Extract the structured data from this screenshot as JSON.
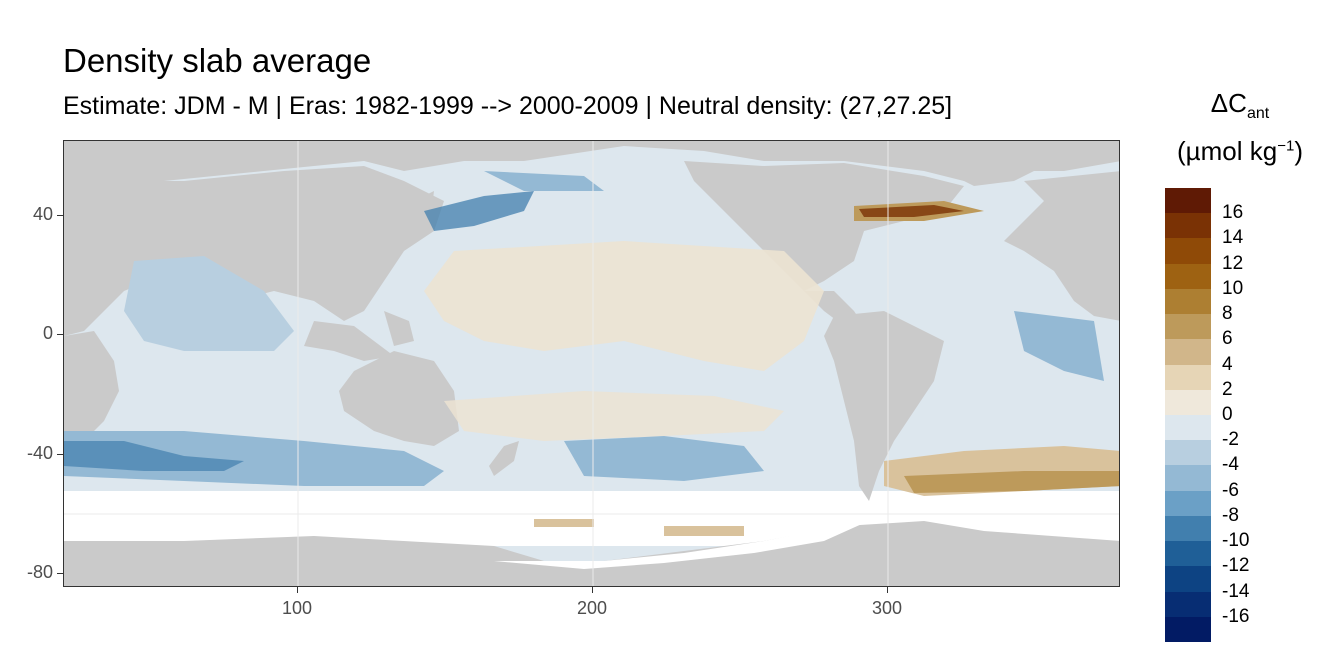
{
  "title": "Density slab average",
  "subtitle": "Estimate: JDM - M | Eras: 1982-1999 --> 2000-2009 | Neutral density: (27,27.25]",
  "legend": {
    "title_line1": "ΔC",
    "title_sub": "ant",
    "title_line2_pre": "(µmol kg",
    "title_sup": "−1",
    "title_line2_post": ")",
    "labels": [
      "16",
      "14",
      "12",
      "10",
      "8",
      "6",
      "4",
      "2",
      "0",
      "-2",
      "-4",
      "-6",
      "-8",
      "-10",
      "-12",
      "-14",
      "-16"
    ],
    "colors": [
      "#5f1a05",
      "#7a3205",
      "#8f4a07",
      "#9e6212",
      "#ad7f32",
      "#bd9a5b",
      "#d1b68a",
      "#e6d5b6",
      "#efe8db",
      "#dde7ee",
      "#b8cfe0",
      "#94b9d4",
      "#6ba0c6",
      "#417fae",
      "#1f5f97",
      "#0d4383",
      "#072d73",
      "#021b64"
    ]
  },
  "axes": {
    "y_ticks": [
      "40",
      "0",
      "-40",
      "-80"
    ],
    "x_ticks": [
      "100",
      "200",
      "300"
    ]
  },
  "map_colors": {
    "land": "#cacaca",
    "no_data": "#ffffff",
    "near_zero_pos": "#ece3d2",
    "near_zero_neg": "#dde7ee",
    "neg_light": "#b8cfe0",
    "neg_mid": "#94b9d4",
    "neg_strong": "#417fae",
    "pos_light": "#d9c29c",
    "pos_mid": "#bd9a5b",
    "pos_strong": "#7a3205"
  }
}
